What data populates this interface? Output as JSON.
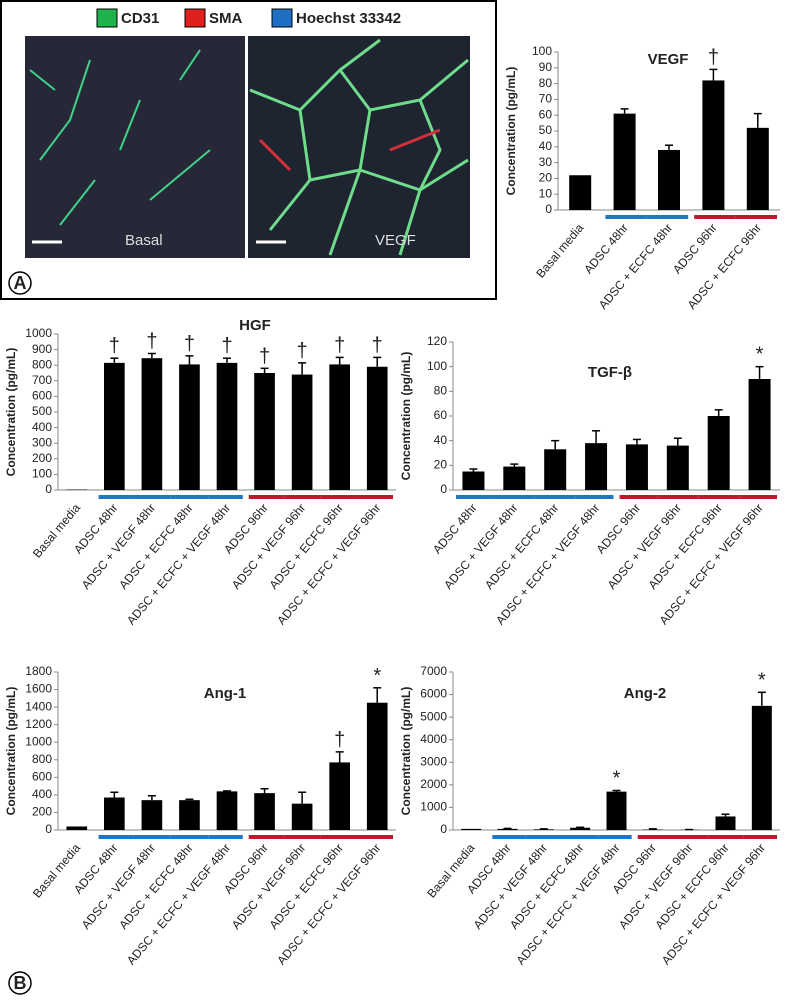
{
  "panel_labels": [
    "A",
    "B"
  ],
  "micrograph": {
    "legend": [
      {
        "name": "CD31",
        "color": "#1db24a"
      },
      {
        "name": "SMA",
        "color": "#e0201b"
      },
      {
        "name": "Hoechst 33342",
        "color": "#1f6fc4"
      }
    ],
    "images": [
      "Basal",
      "VEGF"
    ]
  },
  "chart_data": [
    {
      "type": "bar",
      "title": "VEGF",
      "ylabel": "Concentration (pg/mL)",
      "categories": [
        "Basal media",
        "ADSC 48hr",
        "ADSC + ECFC 48hr",
        "ADSC 96hr",
        "ADSC + ECFC 96hr"
      ],
      "values": [
        22,
        61,
        38,
        82,
        52
      ],
      "errors": [
        null,
        3,
        3,
        7,
        9
      ],
      "annotations": [
        null,
        null,
        null,
        "†",
        null
      ],
      "group_colors": [
        null,
        "#1f77c4",
        "#1f77c4",
        "#c0192b",
        "#c0192b"
      ],
      "color": "#000000",
      "ylim": [
        0,
        100
      ],
      "yticks": [
        0,
        10,
        20,
        30,
        40,
        50,
        60,
        70,
        80,
        90,
        100
      ]
    },
    {
      "type": "bar",
      "title": "HGF",
      "ylabel": "Concentration (pg/mL)",
      "categories": [
        "Basal media",
        "ADSC 48hr",
        "ADSC + VEGF 48hr",
        "ADSC + ECFC 48hr",
        "ADSC + ECFC + VEGF 48hr",
        "ADSC 96hr",
        "ADSC + VEGF 96hr",
        "ADSC + ECFC 96hr",
        "ADSC + ECFC + VEGF 96hr"
      ],
      "values": [
        3,
        815,
        845,
        805,
        815,
        750,
        740,
        805,
        790
      ],
      "errors": [
        null,
        30,
        30,
        55,
        30,
        30,
        75,
        45,
        60
      ],
      "annotations": [
        null,
        "†",
        "†",
        "†",
        "†",
        "†",
        "†",
        "†",
        "†"
      ],
      "group_colors": [
        null,
        "#1f77c4",
        "#1f77c4",
        "#1f77c4",
        "#1f77c4",
        "#c0192b",
        "#c0192b",
        "#c0192b",
        "#c0192b"
      ],
      "color": "#000000",
      "ylim": [
        0,
        1000
      ],
      "yticks": [
        0,
        100,
        200,
        300,
        400,
        500,
        600,
        700,
        800,
        900,
        1000
      ]
    },
    {
      "type": "bar",
      "title": "TGF-β",
      "ylabel": "Concentration (pg/mL)",
      "categories": [
        "ADSC 48hr",
        "ADSC + VEGF 48hr",
        "ADSC + ECFC 48hr",
        "ADSC + ECFC + VEGF 48hr",
        "ADSC 96hr",
        "ADSC + VEGF 96hr",
        "ADSC + ECFC 96hr",
        "ADSC + ECFC + VEGF 96hr"
      ],
      "values": [
        15,
        19,
        33,
        38,
        37,
        36,
        60,
        90
      ],
      "errors": [
        2,
        2,
        7,
        10,
        4,
        6,
        5,
        10
      ],
      "annotations": [
        null,
        null,
        null,
        null,
        null,
        null,
        null,
        "*"
      ],
      "group_colors": [
        "#1f77c4",
        "#1f77c4",
        "#1f77c4",
        "#1f77c4",
        "#c0192b",
        "#c0192b",
        "#c0192b",
        "#c0192b"
      ],
      "color": "#000000",
      "ylim": [
        0,
        120
      ],
      "yticks": [
        0,
        20,
        40,
        60,
        80,
        100,
        120
      ]
    },
    {
      "type": "bar",
      "title": "Ang-1",
      "ylabel": "Concentration (pg/mL)",
      "categories": [
        "Basal media",
        "ADSC 48hr",
        "ADSC + VEGF 48hr",
        "ADSC + ECFC 48hr",
        "ADSC + ECFC + VEGF 48hr",
        "ADSC 96hr",
        "ADSC + VEGF 96hr",
        "ADSC + ECFC 96hr",
        "ADSC + ECFC + VEGF 96hr"
      ],
      "values": [
        40,
        370,
        340,
        340,
        440,
        420,
        300,
        770,
        1450
      ],
      "errors": [
        null,
        60,
        50,
        10,
        5,
        50,
        130,
        120,
        170
      ],
      "annotations": [
        null,
        null,
        null,
        null,
        null,
        null,
        null,
        "†",
        "*"
      ],
      "group_colors": [
        null,
        "#1f77c4",
        "#1f77c4",
        "#1f77c4",
        "#1f77c4",
        "#c0192b",
        "#c0192b",
        "#c0192b",
        "#c0192b"
      ],
      "color": "#000000",
      "ylim": [
        0,
        1800
      ],
      "yticks": [
        0,
        200,
        400,
        600,
        800,
        1000,
        1200,
        1400,
        1600,
        1800
      ]
    },
    {
      "type": "bar",
      "title": "Ang-2",
      "ylabel": "Concentration (pg/mL)",
      "categories": [
        "Basal media",
        "ADSC 48hr",
        "ADSC + VEGF 48hr",
        "ADSC + ECFC 48hr",
        "ADSC + ECFC + VEGF 48hr",
        "ADSC 96hr",
        "ADSC + VEGF 96hr",
        "ADSC + ECFC 96hr",
        "ADSC + ECFC + VEGF 96hr"
      ],
      "values": [
        50,
        50,
        30,
        100,
        1700,
        20,
        10,
        600,
        5500
      ],
      "errors": [
        null,
        20,
        20,
        20,
        50,
        30,
        10,
        100,
        600
      ],
      "annotations": [
        null,
        null,
        null,
        null,
        "*",
        null,
        null,
        null,
        "*"
      ],
      "group_colors": [
        null,
        "#1f77c4",
        "#1f77c4",
        "#1f77c4",
        "#1f77c4",
        "#c0192b",
        "#c0192b",
        "#c0192b",
        "#c0192b"
      ],
      "color": "#000000",
      "ylim": [
        0,
        7000
      ],
      "yticks": [
        0,
        1000,
        2000,
        3000,
        4000,
        5000,
        6000,
        7000
      ]
    }
  ]
}
